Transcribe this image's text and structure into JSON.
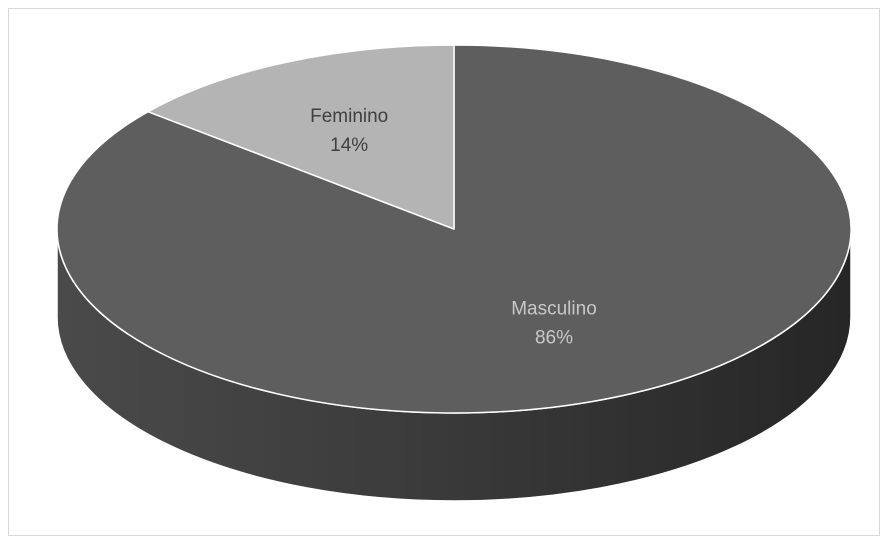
{
  "chart_data": {
    "type": "pie",
    "style": "3d",
    "title": "",
    "slices": [
      {
        "name": "Masculino",
        "value": 86,
        "percent_label": "86%",
        "color": "#5e5e5e",
        "side_color": "#3a3a3a",
        "label_color": "#c8c8c8"
      },
      {
        "name": "Feminino",
        "value": 14,
        "percent_label": "14%",
        "color": "#b4b4b4",
        "side_color": "#8c8c8c",
        "label_color": "#404040"
      }
    ],
    "start_angle_deg": -90,
    "direction": "clockwise",
    "legend": "none"
  }
}
